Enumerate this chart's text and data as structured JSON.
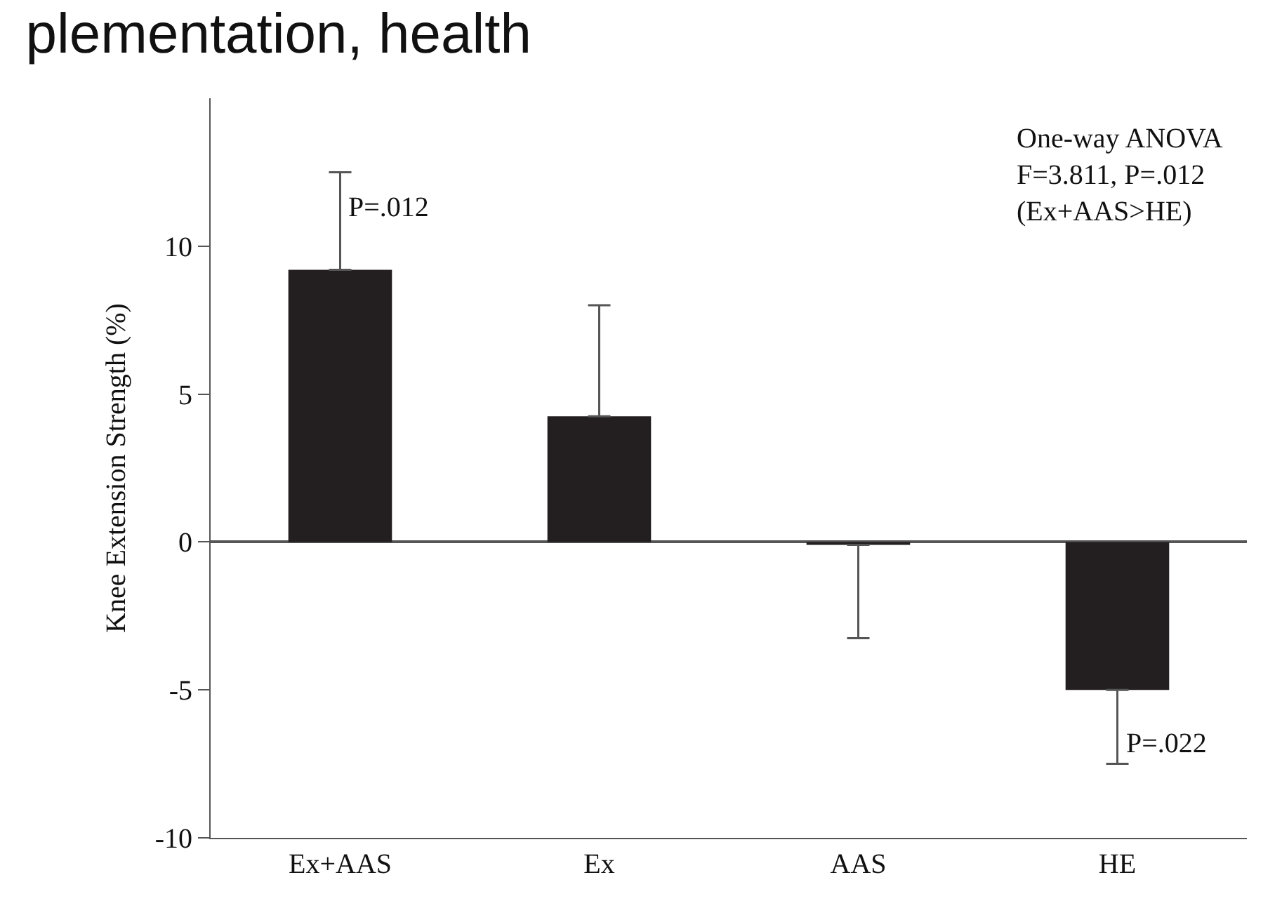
{
  "chart_data": {
    "type": "bar",
    "title": "plementation, health",
    "ylabel": "Knee Extension Strength (%)",
    "categories": [
      "Ex+AAS",
      "Ex",
      "AAS",
      "HE"
    ],
    "values": [
      9.2,
      4.25,
      -0.1,
      -5.0
    ],
    "color": "#231f20",
    "errors": [
      [
        9.2,
        12.5
      ],
      [
        4.25,
        8.0
      ],
      [
        -3.25,
        -0.1
      ],
      [
        -7.5,
        -5.0
      ]
    ],
    "ylim": [
      -10,
      15
    ],
    "yticks": [
      -10,
      -5,
      0,
      5,
      10
    ],
    "annotations": [
      {
        "text": "P=.012",
        "x": "Ex+AAS",
        "y": 11.3
      },
      {
        "text": "P=.022",
        "x": "HE",
        "y": -6.8
      },
      "One-way ANOVA\nF=3.811, P=.012\n(Ex+AAS>HE)"
    ],
    "legend": false
  }
}
